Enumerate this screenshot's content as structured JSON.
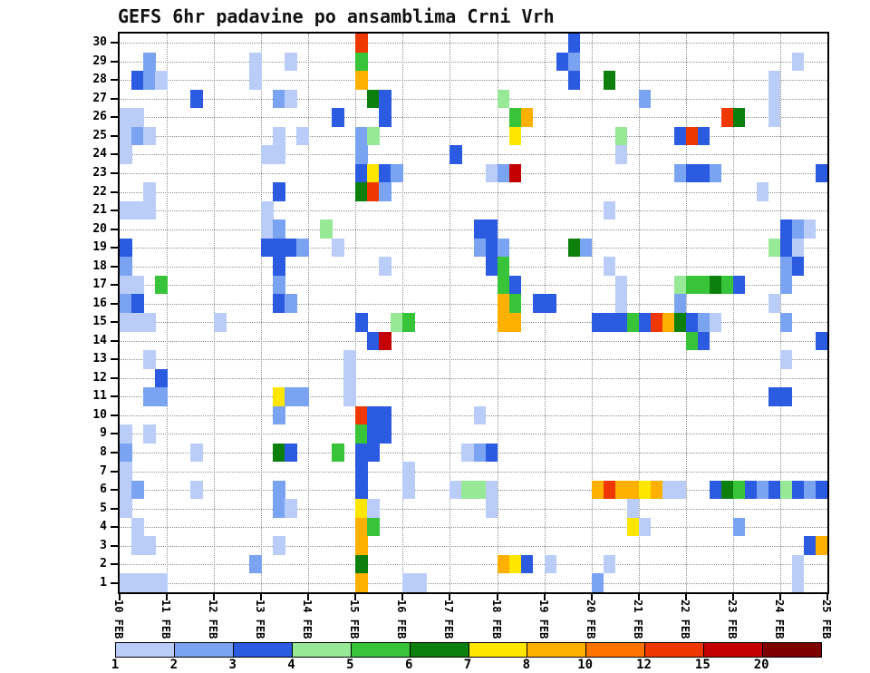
{
  "title": "GEFS 6hr padavine po ansamblima Crni Vrh",
  "chart_data": {
    "type": "heatmap",
    "title": "GEFS 6hr padavine po ansamblima Crni Vrh",
    "x_axis": {
      "day_labels": [
        "10 FEB",
        "11 FEB",
        "12 FEB",
        "13 FEB",
        "14 FEB",
        "15 FEB",
        "16 FEB",
        "17 FEB",
        "18 FEB",
        "19 FEB",
        "20 FEB",
        "21 FEB",
        "22 FEB",
        "23 FEB",
        "24 FEB",
        "25 FEB"
      ],
      "steps_per_day": 4,
      "total_steps": 60
    },
    "y_axis": {
      "tick_labels": [
        "30",
        "29",
        "28",
        "27",
        "26",
        "25",
        "24",
        "23",
        "22",
        "21",
        "20",
        "19",
        "18",
        "17",
        "16",
        "15",
        "14",
        "13",
        "12",
        "11",
        "10",
        "9",
        "8",
        "7",
        "6",
        "5",
        "4",
        "3",
        "2",
        "1"
      ]
    },
    "colorbar": {
      "tick_labels": [
        "1",
        "2",
        "3",
        "4",
        "5",
        "6",
        "7",
        "8",
        "10",
        "12",
        "15",
        "20"
      ],
      "thresholds": [
        1,
        2,
        3,
        4,
        5,
        6,
        7,
        8,
        10,
        12,
        15,
        20
      ],
      "colors": [
        "#b9cdf8",
        "#7aa3f2",
        "#2a5be0",
        "#97e897",
        "#38c438",
        "#0c7f0c",
        "#ffe600",
        "#ffb000",
        "#ff7300",
        "#ef3800",
        "#c40000",
        "#7e0000"
      ]
    },
    "cell_format": [
      "member",
      "time_step_6hr",
      "value_mm"
    ],
    "cells": [
      [
        30,
        20,
        12
      ],
      [
        30,
        38,
        3
      ],
      [
        29,
        2,
        2
      ],
      [
        29,
        11,
        1
      ],
      [
        29,
        14,
        1
      ],
      [
        29,
        20,
        5
      ],
      [
        29,
        37,
        3
      ],
      [
        29,
        38,
        2
      ],
      [
        29,
        57,
        1
      ],
      [
        28,
        1,
        3
      ],
      [
        28,
        2,
        2
      ],
      [
        28,
        3,
        1
      ],
      [
        28,
        11,
        1
      ],
      [
        28,
        20,
        8
      ],
      [
        28,
        38,
        3
      ],
      [
        28,
        41,
        6
      ],
      [
        28,
        55,
        1
      ],
      [
        27,
        6,
        3
      ],
      [
        27,
        13,
        2
      ],
      [
        27,
        14,
        1
      ],
      [
        27,
        21,
        6
      ],
      [
        27,
        22,
        3
      ],
      [
        27,
        32,
        4
      ],
      [
        27,
        44,
        2
      ],
      [
        27,
        55,
        1
      ],
      [
        26,
        0,
        1
      ],
      [
        26,
        1,
        1
      ],
      [
        26,
        18,
        3
      ],
      [
        26,
        22,
        3
      ],
      [
        26,
        33,
        5
      ],
      [
        26,
        34,
        8
      ],
      [
        26,
        51,
        12
      ],
      [
        26,
        52,
        6
      ],
      [
        26,
        55,
        1
      ],
      [
        25,
        0,
        1
      ],
      [
        25,
        1,
        2
      ],
      [
        25,
        2,
        1
      ],
      [
        25,
        13,
        1
      ],
      [
        25,
        15,
        1
      ],
      [
        25,
        20,
        2
      ],
      [
        25,
        21,
        4
      ],
      [
        25,
        33,
        7
      ],
      [
        25,
        42,
        4
      ],
      [
        25,
        47,
        3
      ],
      [
        25,
        48,
        12
      ],
      [
        25,
        49,
        3
      ],
      [
        24,
        0,
        1
      ],
      [
        24,
        12,
        1
      ],
      [
        24,
        13,
        1
      ],
      [
        24,
        20,
        2
      ],
      [
        24,
        28,
        3
      ],
      [
        24,
        42,
        1
      ],
      [
        23,
        20,
        3
      ],
      [
        23,
        21,
        7
      ],
      [
        23,
        22,
        3
      ],
      [
        23,
        23,
        2
      ],
      [
        23,
        31,
        1
      ],
      [
        23,
        32,
        2
      ],
      [
        23,
        33,
        15
      ],
      [
        23,
        47,
        2
      ],
      [
        23,
        48,
        3
      ],
      [
        23,
        49,
        3
      ],
      [
        23,
        50,
        2
      ],
      [
        23,
        59,
        3
      ],
      [
        22,
        2,
        1
      ],
      [
        22,
        13,
        3
      ],
      [
        22,
        20,
        6
      ],
      [
        22,
        21,
        12
      ],
      [
        22,
        22,
        2
      ],
      [
        22,
        54,
        1
      ],
      [
        21,
        0,
        1
      ],
      [
        21,
        1,
        1
      ],
      [
        21,
        2,
        1
      ],
      [
        21,
        12,
        1
      ],
      [
        21,
        41,
        1
      ],
      [
        20,
        12,
        1
      ],
      [
        20,
        13,
        2
      ],
      [
        20,
        17,
        4
      ],
      [
        20,
        30,
        3
      ],
      [
        20,
        31,
        3
      ],
      [
        20,
        56,
        3
      ],
      [
        20,
        57,
        2
      ],
      [
        20,
        58,
        1
      ],
      [
        19,
        0,
        3
      ],
      [
        19,
        12,
        3
      ],
      [
        19,
        13,
        3
      ],
      [
        19,
        14,
        3
      ],
      [
        19,
        15,
        2
      ],
      [
        19,
        18,
        1
      ],
      [
        19,
        30,
        2
      ],
      [
        19,
        31,
        3
      ],
      [
        19,
        32,
        2
      ],
      [
        19,
        38,
        6
      ],
      [
        19,
        39,
        2
      ],
      [
        19,
        55,
        4
      ],
      [
        19,
        56,
        3
      ],
      [
        19,
        57,
        1
      ],
      [
        18,
        0,
        2
      ],
      [
        18,
        13,
        3
      ],
      [
        18,
        22,
        1
      ],
      [
        18,
        31,
        3
      ],
      [
        18,
        32,
        5
      ],
      [
        18,
        41,
        1
      ],
      [
        18,
        56,
        2
      ],
      [
        18,
        57,
        3
      ],
      [
        17,
        0,
        1
      ],
      [
        17,
        1,
        1
      ],
      [
        17,
        3,
        5
      ],
      [
        17,
        13,
        2
      ],
      [
        17,
        32,
        5
      ],
      [
        17,
        33,
        3
      ],
      [
        17,
        42,
        1
      ],
      [
        17,
        47,
        4
      ],
      [
        17,
        48,
        5
      ],
      [
        17,
        49,
        5
      ],
      [
        17,
        50,
        6
      ],
      [
        17,
        51,
        5
      ],
      [
        17,
        52,
        3
      ],
      [
        17,
        56,
        2
      ],
      [
        16,
        0,
        2
      ],
      [
        16,
        1,
        3
      ],
      [
        16,
        13,
        3
      ],
      [
        16,
        14,
        2
      ],
      [
        16,
        32,
        8
      ],
      [
        16,
        33,
        5
      ],
      [
        16,
        35,
        3
      ],
      [
        16,
        36,
        3
      ],
      [
        16,
        42,
        1
      ],
      [
        16,
        47,
        2
      ],
      [
        16,
        55,
        1
      ],
      [
        15,
        0,
        1
      ],
      [
        15,
        1,
        1
      ],
      [
        15,
        2,
        1
      ],
      [
        15,
        8,
        1
      ],
      [
        15,
        20,
        3
      ],
      [
        15,
        23,
        4
      ],
      [
        15,
        24,
        5
      ],
      [
        15,
        32,
        8
      ],
      [
        15,
        33,
        8
      ],
      [
        15,
        40,
        3
      ],
      [
        15,
        41,
        3
      ],
      [
        15,
        42,
        3
      ],
      [
        15,
        43,
        5
      ],
      [
        15,
        44,
        3
      ],
      [
        15,
        45,
        12
      ],
      [
        15,
        46,
        8
      ],
      [
        15,
        47,
        6
      ],
      [
        15,
        48,
        3
      ],
      [
        15,
        49,
        2
      ],
      [
        15,
        50,
        1
      ],
      [
        15,
        56,
        2
      ],
      [
        14,
        21,
        3
      ],
      [
        14,
        22,
        15
      ],
      [
        14,
        48,
        5
      ],
      [
        14,
        49,
        3
      ],
      [
        14,
        59,
        3
      ],
      [
        13,
        2,
        1
      ],
      [
        13,
        19,
        1
      ],
      [
        13,
        56,
        1
      ],
      [
        12,
        3,
        3
      ],
      [
        12,
        19,
        1
      ],
      [
        11,
        2,
        2
      ],
      [
        11,
        3,
        2
      ],
      [
        11,
        13,
        7
      ],
      [
        11,
        14,
        2
      ],
      [
        11,
        15,
        2
      ],
      [
        11,
        19,
        1
      ],
      [
        11,
        55,
        3
      ],
      [
        11,
        56,
        3
      ],
      [
        10,
        13,
        2
      ],
      [
        10,
        20,
        12
      ],
      [
        10,
        21,
        3
      ],
      [
        10,
        22,
        3
      ],
      [
        10,
        30,
        1
      ],
      [
        9,
        0,
        1
      ],
      [
        9,
        2,
        1
      ],
      [
        9,
        20,
        5
      ],
      [
        9,
        21,
        3
      ],
      [
        9,
        22,
        3
      ],
      [
        8,
        0,
        2
      ],
      [
        8,
        6,
        1
      ],
      [
        8,
        13,
        6
      ],
      [
        8,
        14,
        3
      ],
      [
        8,
        18,
        5
      ],
      [
        8,
        20,
        3
      ],
      [
        8,
        21,
        3
      ],
      [
        8,
        29,
        1
      ],
      [
        8,
        30,
        2
      ],
      [
        8,
        31,
        3
      ],
      [
        7,
        0,
        1
      ],
      [
        7,
        20,
        3
      ],
      [
        7,
        24,
        1
      ],
      [
        6,
        0,
        1
      ],
      [
        6,
        1,
        2
      ],
      [
        6,
        6,
        1
      ],
      [
        6,
        13,
        2
      ],
      [
        6,
        20,
        3
      ],
      [
        6,
        24,
        1
      ],
      [
        6,
        28,
        1
      ],
      [
        6,
        29,
        4
      ],
      [
        6,
        30,
        4
      ],
      [
        6,
        31,
        1
      ],
      [
        6,
        40,
        8
      ],
      [
        6,
        41,
        12
      ],
      [
        6,
        42,
        8
      ],
      [
        6,
        43,
        8
      ],
      [
        6,
        44,
        7
      ],
      [
        6,
        45,
        8
      ],
      [
        6,
        46,
        1
      ],
      [
        6,
        47,
        1
      ],
      [
        6,
        50,
        3
      ],
      [
        6,
        51,
        6
      ],
      [
        6,
        52,
        5
      ],
      [
        6,
        53,
        3
      ],
      [
        6,
        54,
        2
      ],
      [
        6,
        55,
        3
      ],
      [
        6,
        56,
        4
      ],
      [
        6,
        57,
        3
      ],
      [
        6,
        58,
        2
      ],
      [
        6,
        59,
        3
      ],
      [
        5,
        0,
        1
      ],
      [
        5,
        13,
        2
      ],
      [
        5,
        14,
        1
      ],
      [
        5,
        20,
        7
      ],
      [
        5,
        21,
        1
      ],
      [
        5,
        31,
        1
      ],
      [
        5,
        43,
        1
      ],
      [
        4,
        1,
        1
      ],
      [
        4,
        20,
        8
      ],
      [
        4,
        21,
        5
      ],
      [
        4,
        43,
        7
      ],
      [
        4,
        44,
        1
      ],
      [
        4,
        52,
        2
      ],
      [
        3,
        1,
        1
      ],
      [
        3,
        2,
        1
      ],
      [
        3,
        13,
        1
      ],
      [
        3,
        20,
        8
      ],
      [
        3,
        58,
        3
      ],
      [
        3,
        59,
        8
      ],
      [
        2,
        11,
        2
      ],
      [
        2,
        20,
        6
      ],
      [
        2,
        32,
        8
      ],
      [
        2,
        33,
        7
      ],
      [
        2,
        34,
        3
      ],
      [
        2,
        36,
        1
      ],
      [
        2,
        41,
        1
      ],
      [
        2,
        57,
        1
      ],
      [
        1,
        0,
        1
      ],
      [
        1,
        1,
        1
      ],
      [
        1,
        2,
        1
      ],
      [
        1,
        3,
        1
      ],
      [
        1,
        20,
        8
      ],
      [
        1,
        24,
        1
      ],
      [
        1,
        25,
        1
      ],
      [
        1,
        40,
        2
      ],
      [
        1,
        57,
        1
      ]
    ]
  }
}
